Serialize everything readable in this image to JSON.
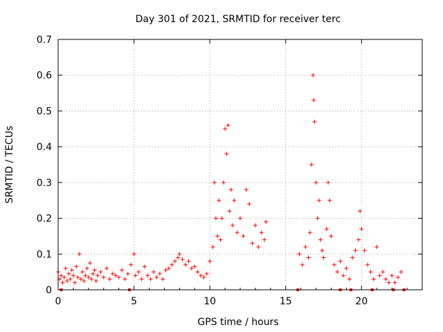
{
  "chart_data": {
    "type": "scatter",
    "title": "Day 301 of 2021, SRMTID for receiver terc",
    "xlabel": "GPS time / hours",
    "ylabel": "SRMTID / TECUs",
    "xlim": [
      0,
      24
    ],
    "ylim": [
      0,
      0.7
    ],
    "x_ticks": [
      0,
      5,
      10,
      15,
      20
    ],
    "y_ticks": [
      0,
      0.1,
      0.2,
      0.3,
      0.4,
      0.5,
      0.6,
      0.7
    ],
    "x_tick_labels": [
      "0",
      "5",
      "10",
      "15",
      "20"
    ],
    "y_tick_labels": [
      "0",
      "0.1",
      "0.2",
      "0.3",
      "0.4",
      "0.5",
      "0.6",
      "0.7"
    ],
    "grid": true,
    "marker": "+",
    "color": "#ff0000",
    "series": [
      {
        "name": "SRMTID",
        "points": [
          [
            0.0,
            0.05
          ],
          [
            0.1,
            0.03
          ],
          [
            0.2,
            0.04
          ],
          [
            0.3,
            0.02
          ],
          [
            0.4,
            0.035
          ],
          [
            0.5,
            0.06
          ],
          [
            0.6,
            0.025
          ],
          [
            0.7,
            0.045
          ],
          [
            0.8,
            0.03
          ],
          [
            0.9,
            0.055
          ],
          [
            1.0,
            0.04
          ],
          [
            1.1,
            0.02
          ],
          [
            1.2,
            0.065
          ],
          [
            1.3,
            0.035
          ],
          [
            1.4,
            0.1
          ],
          [
            1.5,
            0.03
          ],
          [
            1.6,
            0.05
          ],
          [
            1.7,
            0.025
          ],
          [
            1.8,
            0.04
          ],
          [
            1.9,
            0.06
          ],
          [
            2.0,
            0.035
          ],
          [
            2.1,
            0.075
          ],
          [
            2.2,
            0.03
          ],
          [
            2.3,
            0.045
          ],
          [
            2.4,
            0.055
          ],
          [
            2.5,
            0.025
          ],
          [
            2.6,
            0.04
          ],
          [
            2.8,
            0.05
          ],
          [
            3.0,
            0.035
          ],
          [
            3.2,
            0.06
          ],
          [
            3.4,
            0.03
          ],
          [
            3.6,
            0.045
          ],
          [
            3.8,
            0.04
          ],
          [
            4.0,
            0.035
          ],
          [
            4.2,
            0.055
          ],
          [
            4.4,
            0.03
          ],
          [
            4.6,
            0.045
          ],
          [
            4.8,
            0.07
          ],
          [
            5.0,
            0.1
          ],
          [
            5.1,
            0.04
          ],
          [
            5.3,
            0.05
          ],
          [
            5.5,
            0.03
          ],
          [
            5.7,
            0.065
          ],
          [
            5.9,
            0.04
          ],
          [
            6.1,
            0.03
          ],
          [
            6.3,
            0.05
          ],
          [
            6.5,
            0.035
          ],
          [
            6.7,
            0.045
          ],
          [
            6.9,
            0.03
          ],
          [
            7.1,
            0.055
          ],
          [
            7.3,
            0.06
          ],
          [
            7.5,
            0.07
          ],
          [
            7.7,
            0.08
          ],
          [
            7.9,
            0.09
          ],
          [
            8.0,
            0.1
          ],
          [
            8.2,
            0.085
          ],
          [
            8.4,
            0.07
          ],
          [
            8.6,
            0.08
          ],
          [
            8.8,
            0.06
          ],
          [
            9.0,
            0.065
          ],
          [
            9.2,
            0.05
          ],
          [
            9.4,
            0.04
          ],
          [
            9.6,
            0.035
          ],
          [
            9.8,
            0.045
          ],
          [
            10.0,
            0.08
          ],
          [
            10.2,
            0.12
          ],
          [
            10.3,
            0.3
          ],
          [
            10.4,
            0.2
          ],
          [
            10.5,
            0.15
          ],
          [
            10.6,
            0.25
          ],
          [
            10.7,
            0.14
          ],
          [
            10.8,
            0.2
          ],
          [
            10.9,
            0.3
          ],
          [
            11.0,
            0.45
          ],
          [
            11.1,
            0.38
          ],
          [
            11.2,
            0.46
          ],
          [
            11.3,
            0.22
          ],
          [
            11.4,
            0.28
          ],
          [
            11.5,
            0.18
          ],
          [
            11.6,
            0.25
          ],
          [
            11.8,
            0.16
          ],
          [
            12.0,
            0.2
          ],
          [
            12.2,
            0.15
          ],
          [
            12.4,
            0.28
          ],
          [
            12.6,
            0.24
          ],
          [
            12.8,
            0.13
          ],
          [
            13.0,
            0.18
          ],
          [
            13.2,
            0.12
          ],
          [
            13.4,
            0.16
          ],
          [
            13.6,
            0.14
          ],
          [
            13.7,
            0.19
          ],
          [
            15.9,
            0.1
          ],
          [
            16.1,
            0.07
          ],
          [
            16.3,
            0.12
          ],
          [
            16.5,
            0.09
          ],
          [
            16.6,
            0.16
          ],
          [
            16.7,
            0.35
          ],
          [
            16.8,
            0.6
          ],
          [
            16.85,
            0.53
          ],
          [
            16.9,
            0.47
          ],
          [
            17.0,
            0.3
          ],
          [
            17.1,
            0.2
          ],
          [
            17.2,
            0.25
          ],
          [
            17.3,
            0.14
          ],
          [
            17.4,
            0.11
          ],
          [
            17.5,
            0.09
          ],
          [
            17.7,
            0.17
          ],
          [
            17.8,
            0.3
          ],
          [
            17.9,
            0.25
          ],
          [
            18.0,
            0.15
          ],
          [
            18.2,
            0.07
          ],
          [
            18.4,
            0.05
          ],
          [
            18.6,
            0.08
          ],
          [
            18.8,
            0.04
          ],
          [
            19.0,
            0.06
          ],
          [
            19.2,
            0.03
          ],
          [
            19.4,
            0.09
          ],
          [
            19.6,
            0.11
          ],
          [
            19.8,
            0.14
          ],
          [
            19.9,
            0.22
          ],
          [
            20.0,
            0.17
          ],
          [
            20.2,
            0.11
          ],
          [
            20.4,
            0.07
          ],
          [
            20.6,
            0.05
          ],
          [
            20.8,
            0.03
          ],
          [
            21.0,
            0.12
          ],
          [
            21.2,
            0.04
          ],
          [
            21.4,
            0.05
          ],
          [
            21.6,
            0.03
          ],
          [
            21.8,
            0.02
          ],
          [
            22.0,
            0.04
          ],
          [
            22.2,
            0.02
          ],
          [
            22.4,
            0.035
          ],
          [
            22.6,
            0.05
          ]
        ]
      }
    ],
    "baseline_markers": [
      0.2,
      4.7,
      15.8,
      18.6,
      19.3,
      20.7,
      22.1,
      22.8
    ]
  }
}
